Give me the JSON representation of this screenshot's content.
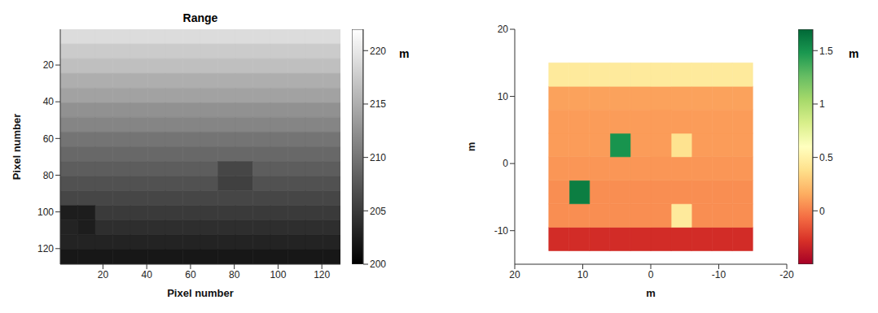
{
  "chart_data": [
    {
      "type": "heatmap",
      "title": "Range",
      "x_label": "Pixel number",
      "y_label": "Pixel number",
      "xlim": [
        0.5,
        128.5
      ],
      "ylim": [
        128.5,
        0.5
      ],
      "xticks": [
        20,
        40,
        60,
        80,
        100,
        120
      ],
      "yticks": [
        20,
        40,
        60,
        80,
        100,
        120
      ],
      "x_edges": [
        0.5,
        8.5,
        16.5,
        24.5,
        32.5,
        40.5,
        48.5,
        56.5,
        64.5,
        72.5,
        80.5,
        88.5,
        96.5,
        104.5,
        112.5,
        120.5,
        128.5
      ],
      "y_edges": [
        0.5,
        8.5,
        16.5,
        24.5,
        32.5,
        40.5,
        48.5,
        56.5,
        64.5,
        72.5,
        80.5,
        88.5,
        96.5,
        104.5,
        112.5,
        120.5,
        128.5
      ],
      "values": [
        [
          219,
          219,
          219,
          219,
          219,
          219,
          219,
          219,
          219,
          219,
          219,
          219,
          219,
          219,
          219,
          219
        ],
        [
          217.5,
          217.5,
          217.5,
          217.5,
          217.5,
          217.5,
          217.5,
          217.5,
          217.5,
          217.5,
          217.5,
          217.5,
          217.5,
          217.5,
          217.5,
          217.5
        ],
        [
          216.5,
          216.5,
          216.5,
          216.5,
          216.5,
          216.5,
          216.5,
          216.5,
          216.5,
          216.5,
          216.5,
          216.5,
          216.5,
          216.5,
          216.5,
          216.5
        ],
        [
          215,
          215,
          215,
          215,
          215,
          215,
          215,
          215,
          215,
          215,
          215,
          215,
          215,
          215,
          215,
          215
        ],
        [
          214,
          214,
          214,
          214,
          214,
          214,
          214,
          214,
          214,
          214,
          214,
          214,
          214,
          214,
          214,
          214
        ],
        [
          212.5,
          212.5,
          212.5,
          212.5,
          212.5,
          212.5,
          212.5,
          212.5,
          212.5,
          212.5,
          212.5,
          212.5,
          212.5,
          212.5,
          212.5,
          212.5
        ],
        [
          211.5,
          211.5,
          211.5,
          211.5,
          211.5,
          211.5,
          211.5,
          211.5,
          211.5,
          211.5,
          211.5,
          211.5,
          211.5,
          211.5,
          211.5,
          211.5
        ],
        [
          210,
          210,
          210,
          210,
          210,
          210,
          210,
          210,
          210,
          210,
          210,
          210,
          210,
          210,
          210,
          210
        ],
        [
          209,
          209,
          209,
          209,
          209,
          209,
          209,
          209,
          209,
          209,
          209,
          209,
          209,
          209,
          209,
          209
        ],
        [
          208,
          208,
          208,
          208,
          208,
          208,
          208,
          208,
          208,
          206,
          206,
          208,
          208,
          208,
          208,
          208
        ],
        [
          207,
          207,
          207,
          207,
          207,
          207,
          207,
          207,
          207,
          205.5,
          205.5,
          207,
          207,
          207,
          207,
          207
        ],
        [
          206,
          206,
          206,
          206,
          206,
          206,
          206,
          206,
          206,
          206,
          206,
          206,
          206,
          206,
          206,
          206
        ],
        [
          202.5,
          202.5,
          205,
          205,
          205,
          205,
          205,
          205,
          205,
          205,
          205,
          205,
          205,
          205,
          205,
          205
        ],
        [
          203,
          202.5,
          204,
          204,
          204,
          204,
          204,
          204,
          204,
          204,
          204,
          204,
          204,
          204,
          204,
          204
        ],
        [
          203,
          203,
          203,
          203,
          203,
          203,
          203,
          203,
          203,
          203,
          203,
          203,
          203,
          203,
          203,
          203
        ],
        [
          202,
          202,
          202,
          202,
          202,
          202,
          202,
          202,
          202,
          202,
          202,
          202,
          202,
          202,
          202,
          202
        ]
      ],
      "colorbar_label": "m",
      "colorbar_range": [
        200,
        222
      ],
      "colorbar_ticks": [
        200,
        205,
        210,
        215,
        220
      ]
    },
    {
      "type": "heatmap",
      "x_label": "m",
      "y_label": "m",
      "xlim": [
        20,
        -20
      ],
      "ylim": [
        -15,
        20
      ],
      "xticks": [
        -20,
        -10,
        0,
        10,
        20
      ],
      "yticks": [
        -10,
        0,
        10,
        20
      ],
      "x_edges": [
        -15,
        -12,
        -9,
        -6,
        -3,
        0,
        3,
        6,
        9,
        12,
        15
      ],
      "y_edges": [
        -13,
        -9.5,
        -6,
        -2.5,
        1,
        4.5,
        8,
        11.5,
        15
      ],
      "values": [
        [
          -0.3,
          -0.3,
          -0.3,
          -0.3,
          -0.3,
          -0.3,
          -0.3,
          -0.3,
          -0.3,
          -0.3
        ],
        [
          0.05,
          0.05,
          0.05,
          0.45,
          0.05,
          0.05,
          0.05,
          0.05,
          0.05,
          0.05
        ],
        [
          0.05,
          0.05,
          0.05,
          0.05,
          0.05,
          0.05,
          0.05,
          0.05,
          1.6,
          0.05
        ],
        [
          0.08,
          0.08,
          0.08,
          0.08,
          0.08,
          0.08,
          0.08,
          0.08,
          0.08,
          0.08
        ],
        [
          0.1,
          0.1,
          0.1,
          0.4,
          0.1,
          0.1,
          1.5,
          0.1,
          0.1,
          0.1
        ],
        [
          0.1,
          0.1,
          0.1,
          0.1,
          0.1,
          0.1,
          0.1,
          0.1,
          0.1,
          0.1
        ],
        [
          0.12,
          0.12,
          0.12,
          0.12,
          0.12,
          0.12,
          0.12,
          0.12,
          0.12,
          0.12
        ],
        [
          0.45,
          0.45,
          0.45,
          0.45,
          0.45,
          0.45,
          0.45,
          0.45,
          0.45,
          0.45
        ]
      ],
      "colorbar_label": "m",
      "colorbar_range": [
        -0.5,
        1.7
      ],
      "colorbar_ticks": [
        0,
        0.5,
        1,
        1.5
      ]
    }
  ]
}
